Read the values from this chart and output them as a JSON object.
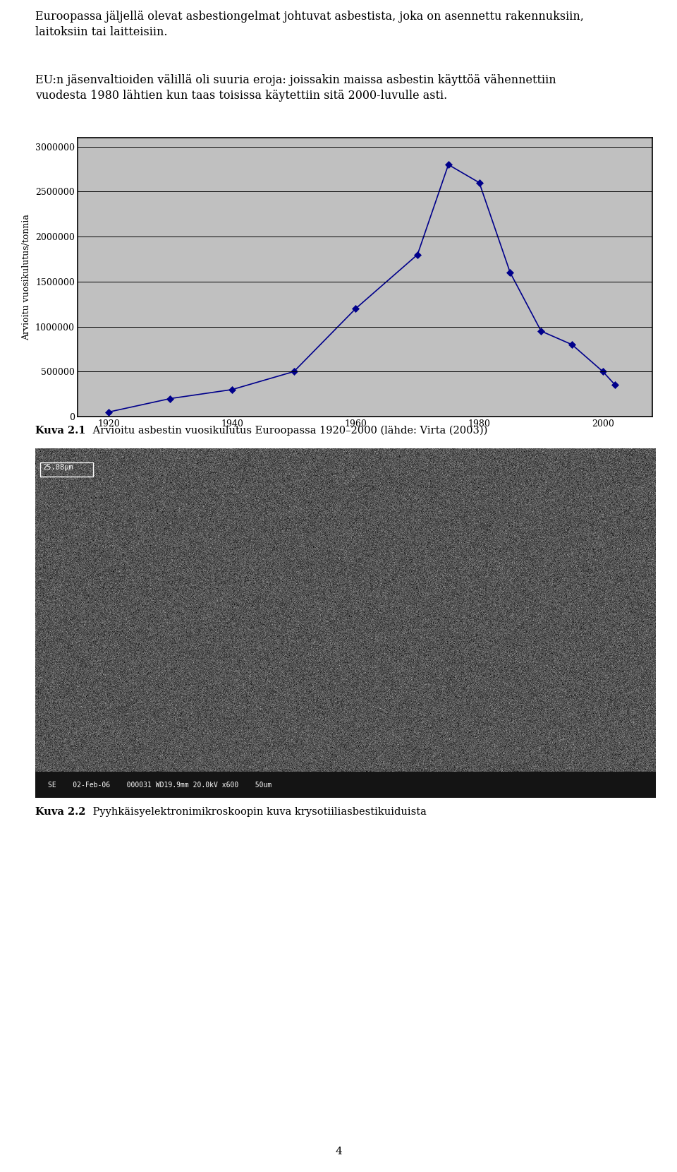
{
  "text_para1": "Euroopassa jäljellä olevat asbestiongelmat johtuvat asbestista, joka on asennettu rakennuksiin,\nlaitoksiin tai laitteisiin.",
  "text_para2": "EU:n jäsenvaltioiden välillä oli suuria eroja: joissakin maissa asbestin käyttöä vähennettiin\nvuodesta 1980 lähtien kun taas toisissa käytettiin sitä 2000-luvulle asti.",
  "chart_x": [
    1920,
    1930,
    1940,
    1950,
    1960,
    1970,
    1975,
    1980,
    1985,
    1990,
    1995,
    2000,
    2002
  ],
  "chart_y": [
    50000,
    200000,
    300000,
    500000,
    1200000,
    1800000,
    2800000,
    2600000,
    1600000,
    950000,
    800000,
    500000,
    350000
  ],
  "chart_ylabel": "Arvioitu vuosikulutus/tonnia",
  "chart_xlabel_ticks": [
    1920,
    1940,
    1960,
    1980,
    2000
  ],
  "chart_yticks": [
    0,
    500000,
    1000000,
    1500000,
    2000000,
    2500000,
    3000000
  ],
  "chart_ylim": [
    0,
    3100000
  ],
  "chart_xlim": [
    1915,
    2008
  ],
  "chart_bg_color": "#c0c0c0",
  "line_color": "#00008B",
  "marker_color": "#00008B",
  "caption1_bold": "Kuva 2.1",
  "caption1_normal": " Arvioitu asbestin vuosikulutus Euroopassa 1920–2000 (lähde: Virta (2003))",
  "caption2_bold": "Kuva 2.2",
  "caption2_normal": " Pyyhkäisyelektronimikroskoopin kuva krysotiiliasbestikuiduista",
  "page_number": "4",
  "fig_width": 9.6,
  "fig_height": 16.6,
  "dpi": 100,
  "font_size_body": 11.5,
  "font_size_caption": 10.5,
  "font_size_ylabel": 9,
  "font_size_tick": 9,
  "bg_color": "#ffffff",
  "photo_bg": "#606060",
  "photo_bar_color": "#111111",
  "photo_bar_text": "SE    02-Feb-06    000031 WD19.9mm 20.0kV x600    50um"
}
